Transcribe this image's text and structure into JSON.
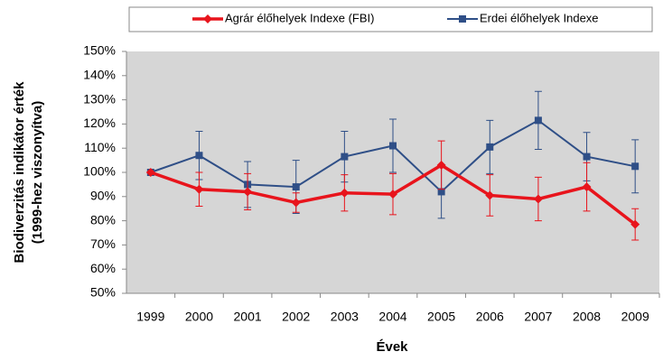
{
  "chart_data": {
    "type": "line",
    "ylabel": [
      "Biodiverzitás indikátor érték",
      "(1999-hez viszonyítva)"
    ],
    "xlabel": "Évek",
    "categories": [
      "1999",
      "2000",
      "2001",
      "2002",
      "2003",
      "2004",
      "2005",
      "2006",
      "2007",
      "2008",
      "2009"
    ],
    "series": [
      {
        "name": "Agrár élőhelyek Indexe (FBI)",
        "color": "#e8141c",
        "marker": "diamond",
        "values": [
          100,
          93,
          92,
          87.5,
          91.5,
          91,
          103,
          90.5,
          89,
          94,
          78.5
        ],
        "errors": [
          0,
          7,
          7.5,
          4,
          7.5,
          8.5,
          10,
          8.5,
          9,
          10,
          6.5
        ]
      },
      {
        "name": "Erdei élőhelyek Indexe",
        "color": "#2f4f87",
        "marker": "square",
        "values": [
          100,
          107,
          95,
          94,
          106.5,
          111,
          92,
          110.5,
          121.5,
          106.5,
          102.5
        ],
        "errors": [
          0,
          10,
          9.5,
          11,
          10.5,
          11,
          11,
          11,
          12,
          10,
          11
        ]
      }
    ],
    "ylim": [
      50,
      150
    ],
    "yticks": [
      {
        "value": 50,
        "label": "50%"
      },
      {
        "value": 60,
        "label": "60%"
      },
      {
        "value": 70,
        "label": "70%"
      },
      {
        "value": 80,
        "label": "80%"
      },
      {
        "value": 90,
        "label": "90%"
      },
      {
        "value": 100,
        "label": "100%"
      },
      {
        "value": 110,
        "label": "110%"
      },
      {
        "value": 120,
        "label": "120%"
      },
      {
        "value": 130,
        "label": "130%"
      },
      {
        "value": 140,
        "label": "140%"
      },
      {
        "value": 150,
        "label": "150%"
      }
    ],
    "legend": "top",
    "plot_background": "#d6d6d6"
  }
}
